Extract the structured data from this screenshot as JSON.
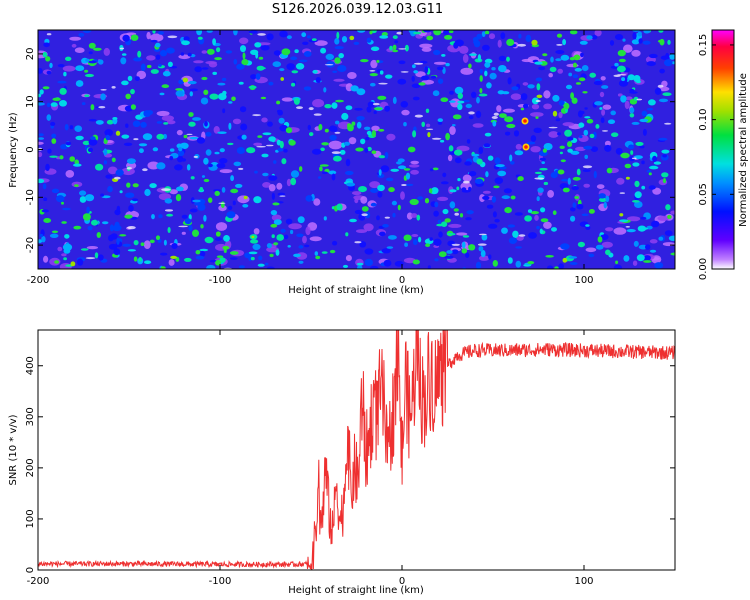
{
  "title": "S126.2026.039.12.03.G11",
  "chart_data": [
    {
      "type": "heatmap",
      "title": "S126.2026.039.12.03.G11",
      "xlabel": "Height of straight line (km)",
      "ylabel": "Frequency (Hz)",
      "xlim": [
        -200,
        150
      ],
      "ylim": [
        -25,
        25
      ],
      "xticks": [
        -200,
        -100,
        0,
        100
      ],
      "yticks": [
        20,
        10,
        0,
        -10,
        -20
      ],
      "colorbar": {
        "label": "Normalized spectral amplitude",
        "range": [
          0.0,
          0.16
        ],
        "ticks": [
          "0.00",
          "0.05",
          "0.10",
          "0.15"
        ],
        "colormap": "rainbow (white/violet → blue → cyan → green → yellow → red → magenta)"
      },
      "description": "noise-like speckled spectrum, amplitudes mostly 0.03–0.07, isolated peaks up to ~0.15"
    },
    {
      "type": "line",
      "xlabel": "Height of straight line (km)",
      "ylabel": "SNR (10 * v/v)",
      "xlim": [
        -200,
        150
      ],
      "ylim": [
        0,
        470
      ],
      "xticks": [
        -200,
        -100,
        0,
        100
      ],
      "yticks": [
        0,
        100,
        200,
        300,
        400
      ],
      "color": "#ee3030",
      "series": [
        {
          "name": "SNR",
          "x": [
            -200,
            -150,
            -100,
            -60,
            -50,
            -48,
            -46,
            -44,
            -42,
            -40,
            -38,
            -36,
            -34,
            -32,
            -30,
            -28,
            -26,
            -24,
            -22,
            -20,
            -18,
            -16,
            -14,
            -12,
            -10,
            -8,
            -6,
            -4,
            -2,
            0,
            2,
            4,
            6,
            8,
            10,
            12,
            14,
            16,
            18,
            20,
            25,
            30,
            40,
            60,
            80,
            100,
            120,
            150
          ],
          "values": [
            12,
            12,
            11,
            11,
            12,
            60,
            130,
            90,
            200,
            110,
            70,
            180,
            90,
            130,
            280,
            150,
            200,
            170,
            340,
            230,
            250,
            330,
            300,
            340,
            330,
            210,
            280,
            340,
            410,
            210,
            380,
            300,
            330,
            460,
            360,
            330,
            360,
            390,
            360,
            380,
            400,
            420,
            430,
            430,
            432,
            430,
            428,
            425
          ]
        }
      ]
    }
  ]
}
